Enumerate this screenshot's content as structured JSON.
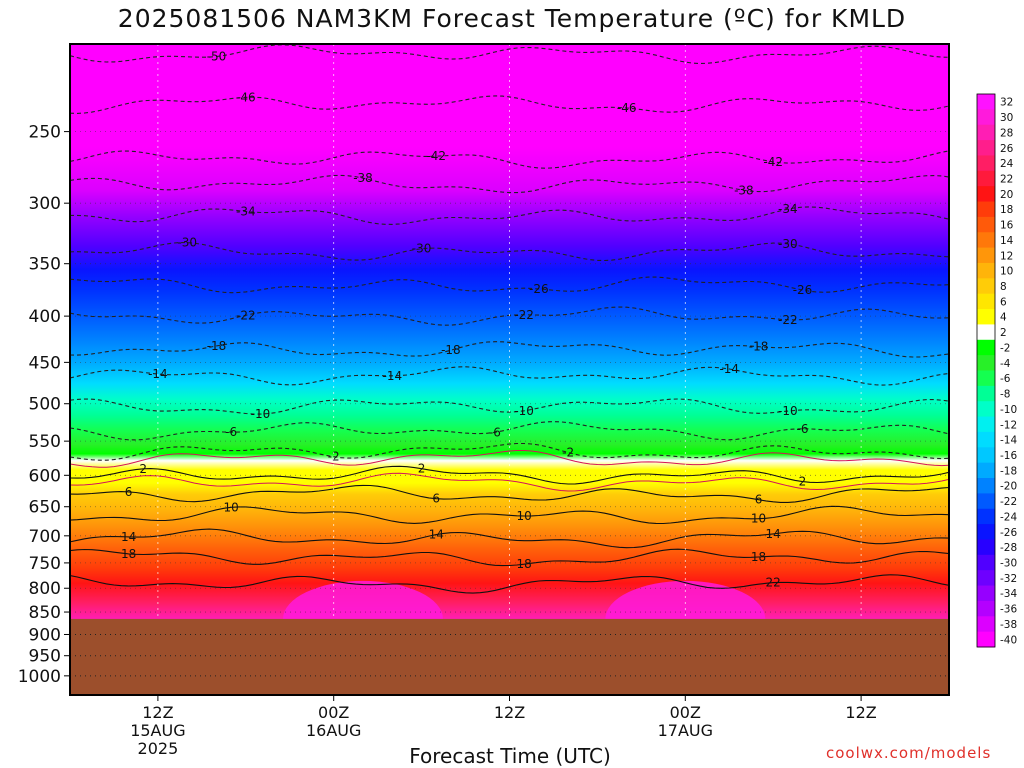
{
  "title": "2025081506 NAM3KM Forecast Temperature (ºC) for KMLD",
  "xlabel": "Forecast Time (UTC)",
  "credit": "coolwx.com/models",
  "colors": {
    "terrain": "#9c4f2c",
    "contour_pos": "#111111",
    "contour_neg": "#222222",
    "freezing": "#d4145a"
  },
  "chart_data": {
    "type": "heatmap",
    "title": "2025081506 NAM3KM Forecast Temperature (ºC) for KMLD",
    "xlabel": "Forecast Time (UTC)",
    "ylabel": "",
    "y_scale": "log-pressure",
    "y_levels": [
      1000,
      950,
      900,
      850,
      800,
      750,
      700,
      650,
      600,
      550,
      500,
      450,
      400,
      350,
      300,
      250
    ],
    "y_range": [
      1050,
      200
    ],
    "x_ticks": [
      {
        "hour": 6,
        "label": "12Z",
        "sub1": "15AUG",
        "sub2": "2025"
      },
      {
        "hour": 18,
        "label": "00Z",
        "sub1": "16AUG",
        "sub2": ""
      },
      {
        "hour": 30,
        "label": "12Z",
        "sub1": "",
        "sub2": ""
      },
      {
        "hour": 42,
        "label": "00Z",
        "sub1": "17AUG",
        "sub2": ""
      },
      {
        "hour": 54,
        "label": "12Z",
        "sub1": "",
        "sub2": ""
      }
    ],
    "x_range_hours": [
      0,
      60
    ],
    "surface_pressure": 865,
    "colorbar": {
      "labels": [
        "32",
        "30",
        "28",
        "26",
        "24",
        "22",
        "20",
        "18",
        "16",
        "14",
        "12",
        "10",
        "8",
        "6",
        "4",
        "2",
        "-2",
        "-4",
        "-6",
        "-8",
        "-10",
        "-12",
        "-14",
        "-16",
        "-18",
        "-20",
        "-22",
        "-24",
        "-26",
        "-28",
        "-30",
        "-32",
        "-34",
        "-36",
        "-38",
        "-40"
      ],
      "colors": [
        "#ff12ff",
        "#ff1adc",
        "#ff1eb4",
        "#ff1e8c",
        "#ff1e64",
        "#ff1a3c",
        "#ff1414",
        "#ff3c0a",
        "#ff5a0a",
        "#ff780a",
        "#ff960a",
        "#ffb40a",
        "#ffcc08",
        "#ffe600",
        "#ffff00",
        "#ffffff",
        "#00ff00",
        "#28f028",
        "#14ff50",
        "#00ff96",
        "#00ffc8",
        "#00f0f0",
        "#00dcff",
        "#00c8ff",
        "#00aaff",
        "#0082ff",
        "#005aff",
        "#0032ff",
        "#0a14ff",
        "#2800ff",
        "#5000ff",
        "#6e00ff",
        "#9600ff",
        "#b400ff",
        "#dc00ff",
        "#ff00ff"
      ]
    },
    "contours": [
      {
        "value": -50,
        "label": "-50",
        "p": 205,
        "label_hours": [
          10
        ]
      },
      {
        "value": -46,
        "label": "-46",
        "p": 233,
        "label_hours": [
          12,
          38
        ]
      },
      {
        "value": -42,
        "label": "-42",
        "p": 268,
        "label_hours": [
          25,
          48
        ]
      },
      {
        "value": -38,
        "label": "-38",
        "p": 286,
        "label_hours": [
          20,
          46
        ]
      },
      {
        "value": -34,
        "label": "-34",
        "p": 310,
        "label_hours": [
          12,
          49
        ]
      },
      {
        "value": -30,
        "label": "-30",
        "p": 340,
        "label_hours": [
          8,
          24,
          49
        ]
      },
      {
        "value": -26,
        "label": "-26",
        "p": 370,
        "label_hours": [
          32,
          50
        ]
      },
      {
        "value": -22,
        "label": "-22",
        "p": 400,
        "label_hours": [
          12,
          31,
          49
        ]
      },
      {
        "value": -18,
        "label": "-18",
        "p": 435,
        "label_hours": [
          10,
          26,
          47
        ]
      },
      {
        "value": -14,
        "label": "-14",
        "p": 465,
        "label_hours": [
          6,
          22,
          45
        ]
      },
      {
        "value": -10,
        "label": "-10",
        "p": 503,
        "label_hours": [
          13,
          31,
          49
        ]
      },
      {
        "value": -6,
        "label": "-6",
        "p": 535,
        "label_hours": [
          11,
          29,
          50
        ]
      },
      {
        "value": -2,
        "label": "-2",
        "p": 565,
        "label_hours": [
          18,
          34
        ]
      },
      {
        "value": 2,
        "label": "2",
        "p": 600,
        "label_hours": [
          5,
          24,
          50
        ]
      },
      {
        "value": 6,
        "label": "6",
        "p": 630,
        "label_hours": [
          4,
          25,
          47
        ]
      },
      {
        "value": 10,
        "label": "10",
        "p": 665,
        "label_hours": [
          11,
          31,
          47
        ]
      },
      {
        "value": 14,
        "label": "14",
        "p": 705,
        "label_hours": [
          4,
          25,
          48
        ]
      },
      {
        "value": 18,
        "label": "18",
        "p": 740,
        "label_hours": [
          4,
          31,
          47
        ]
      },
      {
        "value": 22,
        "label": "22",
        "p": 790,
        "label_hours": [
          48
        ]
      }
    ]
  }
}
